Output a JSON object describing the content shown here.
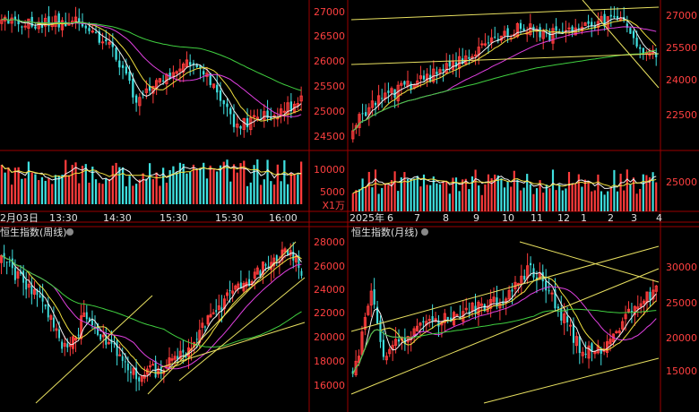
{
  "colors": {
    "up": "#ff3c3c",
    "down": "#3fe0e0",
    "ma5": "#f0f0f0",
    "ma10": "#f0e040",
    "ma20": "#e040e0",
    "ma60": "#40d040",
    "trend": "#e8e060",
    "divider": "#9b0000",
    "axis_up": "#ff4040",
    "axis_text": "#dd3a3a",
    "date_text": "#e0e0e0"
  },
  "chart_data": [
    {
      "type": "candlestick",
      "panel": "top-left",
      "title": "",
      "y_axis_shared_with": "top-middle",
      "date_labels": [
        "2月03日",
        "13:30",
        "14:30",
        "15:30",
        "15:30",
        "16:00"
      ],
      "volume_unit": "X1万",
      "trend": "declining from ~26900 to ~24500, rebound to ~25100"
    },
    {
      "type": "candlestick",
      "panel": "top-middle",
      "title": "",
      "y_ticks": [
        24500,
        25000,
        25500,
        26000,
        26500,
        27000
      ],
      "volume_ticks": [
        5000,
        10000
      ],
      "volume_unit": "X1万",
      "date_labels": [
        "2025年",
        "6",
        "7",
        "8",
        "9",
        "10",
        "11",
        "12",
        "1",
        "2",
        "3",
        "4"
      ],
      "trend": "rising from ~24500 to ~27100, pullback to ~25000"
    },
    {
      "type": "candlestick",
      "panel": "top-right",
      "title": "",
      "y_ticks": [
        22500,
        24000,
        25500,
        27000
      ],
      "volume_ticks": [
        25000
      ],
      "trend": "rising channel, pullback to ~25000"
    },
    {
      "type": "candlestick",
      "panel": "bottom-left",
      "title": "恒生指数(周线)",
      "y_axis_shared_with": "bottom-middle",
      "trend": "decline to ~15000, then uptrend to ~26900, pullback"
    },
    {
      "type": "candlestick",
      "panel": "bottom-middle",
      "title": "恒生指数(月线)",
      "y_ticks": [
        16000,
        18000,
        20000,
        22000,
        24000,
        26000,
        28000
      ],
      "trend": "long-term channel, recent rebound to ~27000"
    },
    {
      "type": "candlestick",
      "panel": "bottom-right",
      "title": "",
      "y_ticks": [
        15000,
        20000,
        25000,
        30000
      ],
      "trend": "long-term channel, latest ~25300"
    }
  ]
}
